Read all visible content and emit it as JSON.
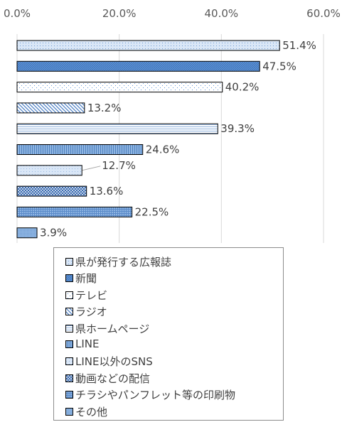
{
  "chart_data": {
    "type": "bar",
    "orientation": "horizontal",
    "xlim": [
      0,
      60
    ],
    "x_ticks": [
      "0.0%",
      "20.0%",
      "40.0%",
      "60.0%"
    ],
    "x_axis_position": "top",
    "grid": "vertical",
    "legend_position": "bottom",
    "categories": [
      "県が発行する広報誌",
      "新聞",
      "テレビ",
      "ラジオ",
      "県ホームページ",
      "LINE",
      "LINE以外のSNS",
      "動画などの配信",
      "チラシやパンフレット等の印刷物",
      "その他"
    ],
    "values": [
      51.4,
      47.5,
      40.2,
      13.2,
      39.3,
      24.6,
      12.7,
      13.6,
      22.5,
      3.9
    ],
    "labels": [
      "51.4%",
      "47.5%",
      "40.2%",
      "13.2%",
      "39.3%",
      "24.6%",
      "12.7%",
      "13.6%",
      "22.5%",
      "3.9%"
    ],
    "colors": [
      "#dae7f7",
      "#5b91d6",
      "#ffffff",
      "#ffffff",
      "#ffffff",
      "#8db4e2",
      "#dae7f7",
      "#5b91d6",
      "#8db4e2",
      "#8db4e2"
    ]
  }
}
